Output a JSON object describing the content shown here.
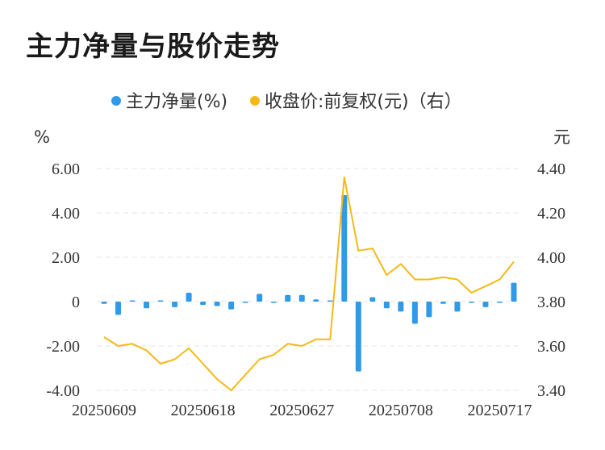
{
  "title": "主力净量与股价走势",
  "chart_data": {
    "type": "bar+line",
    "legend": {
      "placement": "top-center",
      "items": [
        {
          "label": "主力净量(%)",
          "color": "#2f9ae8"
        },
        {
          "label": "收盘价:前复权(元)（右）",
          "color": "#f5b917"
        }
      ]
    },
    "left_axis": {
      "unit": "%",
      "range": [
        -4,
        6
      ],
      "ticks": [
        "6.00",
        "4.00",
        "2.00",
        "0",
        "-2.00",
        "-4.00"
      ],
      "tick_values": [
        6,
        4,
        2,
        0,
        -2,
        -4
      ]
    },
    "right_axis": {
      "unit": "元",
      "range": [
        3.4,
        4.4
      ],
      "ticks": [
        "4.40",
        "4.20",
        "4.00",
        "3.80",
        "3.60",
        "3.40"
      ],
      "tick_values": [
        4.4,
        4.2,
        4.0,
        3.8,
        3.6,
        3.4
      ]
    },
    "x_tick_labels": [
      "20250609",
      "20250618",
      "20250627",
      "20250708",
      "20250717"
    ],
    "x_tick_indices": [
      0,
      7,
      14,
      21,
      28
    ],
    "grid": true,
    "series": [
      {
        "name": "主力净量(%)",
        "type": "bar",
        "axis": "left",
        "color": "#2f9ae8",
        "values": [
          -0.1,
          -0.6,
          0.05,
          -0.3,
          0.05,
          -0.25,
          0.4,
          -0.15,
          -0.2,
          -0.35,
          -0.05,
          0.35,
          -0.05,
          0.3,
          0.3,
          0.1,
          0.0,
          4.8,
          -3.15,
          0.2,
          -0.3,
          -0.45,
          -1.0,
          -0.7,
          -0.1,
          -0.45,
          -0.05,
          -0.25,
          -0.05,
          0.85
        ]
      },
      {
        "name": "收盘价:前复权(元)（右）",
        "type": "line",
        "axis": "right",
        "color": "#f5b917",
        "values": [
          3.64,
          3.6,
          3.61,
          3.58,
          3.52,
          3.54,
          3.59,
          3.52,
          3.45,
          3.4,
          3.47,
          3.54,
          3.56,
          3.61,
          3.6,
          3.63,
          3.63,
          4.36,
          4.03,
          4.04,
          3.92,
          3.97,
          3.9,
          3.9,
          3.91,
          3.9,
          3.84,
          3.87,
          3.9,
          3.98
        ]
      }
    ]
  }
}
